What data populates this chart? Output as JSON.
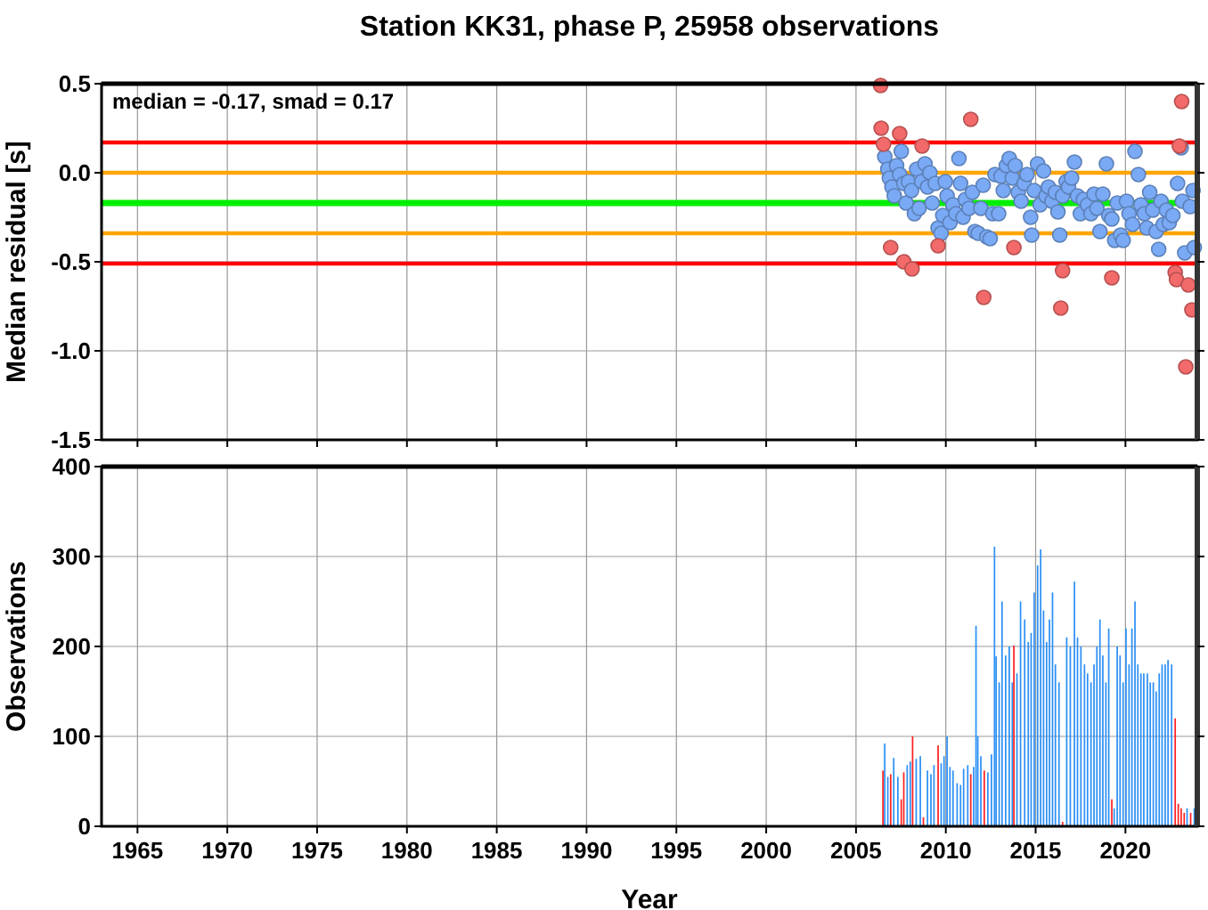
{
  "chart_data": [
    {
      "type": "scatter",
      "title": "Station KK31, phase P, 25958 observations",
      "ylabel": "Median residual [s]",
      "annotations": [
        "median = -0.17, smad = 0.17"
      ],
      "xlim": [
        1963,
        2024
      ],
      "xticks": [
        1965,
        1970,
        1975,
        1980,
        1985,
        1990,
        1995,
        2000,
        2005,
        2010,
        2015,
        2020
      ],
      "ylim": [
        -1.5,
        0.5
      ],
      "yticks": [
        0.5,
        {
          "value": 0,
          "label": "0.0"
        },
        -0.5,
        {
          "value": -1,
          "label": "-1.0"
        },
        -1.5
      ],
      "tick_labels": "y",
      "grid": true,
      "marker": "circle",
      "ref_lines": [
        {
          "axis": "y",
          "value": 0.17,
          "color": "#ff0000"
        },
        {
          "axis": "y",
          "value": 0,
          "color": "#ffa500"
        },
        {
          "axis": "y",
          "value": -0.17,
          "color": "#00ee00"
        },
        {
          "axis": "y",
          "value": -0.34,
          "color": "#ffa500"
        },
        {
          "axis": "y",
          "value": -0.51,
          "color": "#ff0000"
        }
      ],
      "series": [
        {
          "color": "#7aaaf5",
          "x": [
            2006.6,
            2006.77,
            2006.86,
            2007.0,
            2007.13,
            2007.26,
            2007.43,
            2007.52,
            2007.66,
            2007.79,
            2007.92,
            2008.09,
            2008.25,
            2008.38,
            2008.51,
            2008.65,
            2008.84,
            2008.98,
            2009.11,
            2009.24,
            2009.41,
            2009.57,
            2009.74,
            2009.83,
            2009.97,
            2010.07,
            2010.23,
            2010.4,
            2010.56,
            2010.73,
            2010.82,
            2010.96,
            2011.09,
            2011.29,
            2011.48,
            2011.62,
            2011.81,
            2011.95,
            2012.08,
            2012.28,
            2012.47,
            2012.61,
            2012.74,
            2012.94,
            2013.07,
            2013.2,
            2013.37,
            2013.53,
            2013.7,
            2013.86,
            2014.03,
            2014.19,
            2014.36,
            2014.52,
            2014.72,
            2014.78,
            2014.92,
            2015.11,
            2015.25,
            2015.44,
            2015.58,
            2015.71,
            2015.91,
            2016.1,
            2016.24,
            2016.34,
            2016.5,
            2016.7,
            2016.83,
            2017.0,
            2017.16,
            2017.33,
            2017.49,
            2017.66,
            2017.89,
            2018.08,
            2018.25,
            2018.41,
            2018.58,
            2018.74,
            2018.94,
            2019.07,
            2019.24,
            2019.4,
            2019.54,
            2019.73,
            2019.87,
            2020.06,
            2020.2,
            2020.39,
            2020.53,
            2020.72,
            2020.86,
            2021.05,
            2021.19,
            2021.35,
            2021.52,
            2021.71,
            2021.85,
            2021.98,
            2022.11,
            2022.28,
            2022.44,
            2022.64,
            2022.9,
            2023.1,
            2023.17,
            2023.3,
            2023.6,
            2023.76,
            2023.83
          ],
          "values": [
            0.09,
            0.02,
            -0.03,
            -0.08,
            -0.13,
            0.04,
            -0.01,
            0.12,
            -0.06,
            -0.17,
            -0.05,
            -0.1,
            -0.23,
            0.02,
            -0.2,
            -0.05,
            0.05,
            -0.08,
            0.0,
            -0.17,
            -0.06,
            -0.31,
            -0.34,
            -0.24,
            -0.05,
            -0.13,
            -0.28,
            -0.18,
            -0.23,
            0.08,
            -0.06,
            -0.25,
            -0.15,
            -0.2,
            -0.11,
            -0.33,
            -0.34,
            -0.2,
            -0.07,
            -0.36,
            -0.37,
            -0.23,
            -0.01,
            -0.23,
            -0.02,
            -0.1,
            0.04,
            0.08,
            -0.03,
            0.04,
            -0.11,
            -0.16,
            -0.06,
            -0.01,
            -0.25,
            -0.35,
            -0.1,
            0.05,
            -0.18,
            0.01,
            -0.13,
            -0.08,
            -0.16,
            -0.11,
            -0.22,
            -0.35,
            -0.13,
            -0.05,
            -0.08,
            -0.03,
            0.06,
            -0.13,
            -0.23,
            -0.15,
            -0.18,
            -0.23,
            -0.12,
            -0.2,
            -0.33,
            -0.12,
            0.05,
            -0.24,
            -0.26,
            -0.38,
            -0.17,
            -0.35,
            -0.38,
            -0.16,
            -0.23,
            -0.29,
            0.12,
            -0.01,
            -0.18,
            -0.23,
            -0.31,
            -0.11,
            -0.21,
            -0.33,
            -0.43,
            -0.16,
            -0.29,
            -0.21,
            -0.28,
            -0.24,
            -0.06,
            0.14,
            -0.16,
            -0.45,
            -0.19,
            -0.1,
            -0.42
          ]
        },
        {
          "color": "#f26a6a",
          "x": [
            2006.37,
            2006.4,
            2007.43,
            2006.53,
            2011.39,
            2008.68,
            2023.0,
            2023.13,
            2006.93,
            2007.66,
            2008.12,
            2009.57,
            2013.79,
            2012.11,
            2016.5,
            2016.4,
            2019.24,
            2022.77,
            2022.84,
            2023.5,
            2023.7,
            2023.36
          ],
          "values": [
            0.49,
            0.25,
            0.22,
            0.16,
            0.3,
            0.15,
            0.15,
            0.4,
            -0.42,
            -0.5,
            -0.54,
            -0.41,
            -0.42,
            -0.7,
            -0.55,
            -0.76,
            -0.59,
            -0.56,
            -0.6,
            -0.63,
            -0.77,
            -1.09
          ]
        }
      ]
    },
    {
      "type": "bar",
      "xlabel": "Year",
      "ylabel": "Observations",
      "xlim": [
        1963,
        2024
      ],
      "xticks": [
        1965,
        1970,
        1975,
        1980,
        1985,
        1990,
        1995,
        2000,
        2005,
        2010,
        2015,
        2020
      ],
      "ylim": [
        0,
        400
      ],
      "yticks": [
        0,
        100,
        200,
        300,
        400
      ],
      "grid": true,
      "x": [
        2006.5,
        2006.6,
        2006.77,
        2006.93,
        2007.1,
        2007.33,
        2007.52,
        2007.66,
        2007.85,
        2008.02,
        2008.15,
        2008.35,
        2008.58,
        2008.75,
        2008.98,
        2009.17,
        2009.34,
        2009.57,
        2009.74,
        2009.9,
        2010.07,
        2010.23,
        2010.4,
        2010.63,
        2010.82,
        2010.99,
        2011.22,
        2011.39,
        2011.55,
        2011.68,
        2011.78,
        2011.95,
        2012.14,
        2012.34,
        2012.54,
        2012.71,
        2012.8,
        2012.97,
        2013.13,
        2013.33,
        2013.53,
        2013.7,
        2013.79,
        2013.96,
        2014.16,
        2014.39,
        2014.59,
        2014.75,
        2014.92,
        2015.11,
        2015.28,
        2015.44,
        2015.61,
        2015.77,
        2015.94,
        2016.1,
        2016.3,
        2016.5,
        2016.73,
        2016.93,
        2017.16,
        2017.33,
        2017.52,
        2017.72,
        2017.89,
        2018.08,
        2018.25,
        2018.41,
        2018.58,
        2018.74,
        2018.91,
        2019.07,
        2019.24,
        2019.37,
        2019.54,
        2019.7,
        2019.87,
        2020.03,
        2020.2,
        2020.36,
        2020.53,
        2020.69,
        2020.86,
        2021.02,
        2021.22,
        2021.38,
        2021.55,
        2021.71,
        2021.88,
        2022.04,
        2022.21,
        2022.37,
        2022.57,
        2022.77,
        2022.94,
        2023.1,
        2023.27,
        2023.43,
        2023.63,
        2023.83
      ],
      "values": [
        62,
        92,
        55,
        58,
        76,
        55,
        30,
        60,
        68,
        72,
        100,
        75,
        78,
        10,
        62,
        58,
        68,
        90,
        70,
        78,
        100,
        66,
        62,
        48,
        46,
        64,
        68,
        58,
        66,
        223,
        100,
        78,
        62,
        60,
        80,
        311,
        189,
        160,
        250,
        190,
        200,
        160,
        201,
        170,
        250,
        230,
        205,
        215,
        260,
        290,
        308,
        240,
        205,
        230,
        260,
        180,
        160,
        5,
        210,
        200,
        272,
        210,
        200,
        180,
        170,
        160,
        180,
        200,
        230,
        190,
        160,
        220,
        30,
        20,
        200,
        190,
        160,
        220,
        180,
        220,
        250,
        180,
        170,
        170,
        170,
        160,
        160,
        150,
        170,
        180,
        180,
        185,
        180,
        120,
        25,
        20,
        15,
        20,
        15,
        20
      ],
      "colors": [
        "#ff2020",
        "#2b8ff5",
        "#2b8ff5",
        "#ff2020",
        "#2b8ff5",
        "#2b8ff5",
        "#ff2020",
        "#ff2020",
        "#2b8ff5",
        "#2b8ff5",
        "#ff2020",
        "#2b8ff5",
        "#2b8ff5",
        "#ff2020",
        "#2b8ff5",
        "#2b8ff5",
        "#2b8ff5",
        "#ff2020",
        "#2b8ff5",
        "#2b8ff5",
        "#2b8ff5",
        "#2b8ff5",
        "#2b8ff5",
        "#2b8ff5",
        "#2b8ff5",
        "#2b8ff5",
        "#2b8ff5",
        "#ff2020",
        "#2b8ff5",
        "#2b8ff5",
        "#2b8ff5",
        "#2b8ff5",
        "#ff2020",
        "#2b8ff5",
        "#2b8ff5",
        "#2b8ff5",
        "#2b8ff5",
        "#2b8ff5",
        "#2b8ff5",
        "#2b8ff5",
        "#2b8ff5",
        "#2b8ff5",
        "#ff2020",
        "#2b8ff5",
        "#2b8ff5",
        "#2b8ff5",
        "#2b8ff5",
        "#2b8ff5",
        "#2b8ff5",
        "#2b8ff5",
        "#2b8ff5",
        "#2b8ff5",
        "#2b8ff5",
        "#2b8ff5",
        "#2b8ff5",
        "#2b8ff5",
        "#2b8ff5",
        "#ff2020",
        "#2b8ff5",
        "#2b8ff5",
        "#2b8ff5",
        "#2b8ff5",
        "#2b8ff5",
        "#2b8ff5",
        "#2b8ff5",
        "#2b8ff5",
        "#2b8ff5",
        "#2b8ff5",
        "#2b8ff5",
        "#2b8ff5",
        "#2b8ff5",
        "#2b8ff5",
        "#ff2020",
        "#2b8ff5",
        "#2b8ff5",
        "#2b8ff5",
        "#2b8ff5",
        "#2b8ff5",
        "#2b8ff5",
        "#2b8ff5",
        "#2b8ff5",
        "#2b8ff5",
        "#2b8ff5",
        "#2b8ff5",
        "#2b8ff5",
        "#2b8ff5",
        "#2b8ff5",
        "#2b8ff5",
        "#2b8ff5",
        "#2b8ff5",
        "#2b8ff5",
        "#2b8ff5",
        "#2b8ff5",
        "#ff2020",
        "#ff2020",
        "#ff2020",
        "#ff2020",
        "#2b8ff5",
        "#ff2020",
        "#2b8ff5"
      ]
    }
  ]
}
